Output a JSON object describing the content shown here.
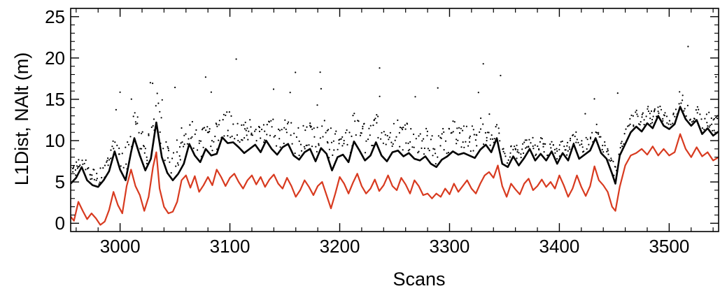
{
  "chart_data": {
    "type": "line",
    "title": "",
    "xlabel": "Scans",
    "ylabel": "L1Dist, NAlt (m)",
    "xlim": [
      2955,
      3545
    ],
    "ylim": [
      -1,
      26
    ],
    "xticks": [
      3000,
      3100,
      3200,
      3300,
      3400,
      3500
    ],
    "yticks": [
      0,
      5,
      10,
      15,
      20,
      25
    ],
    "xtick_labels": [
      "3000",
      "3100",
      "3200",
      "3300",
      "3400",
      "3500"
    ],
    "ytick_labels": [
      "0",
      "5",
      "10",
      "15",
      "20",
      "25"
    ],
    "grid": false,
    "legend": "none",
    "series": [
      {
        "kind": "line",
        "color": "#000000",
        "x": [
          2955,
          2960,
          2965,
          2970,
          2975,
          2980,
          2985,
          2990,
          2995,
          3000,
          3005,
          3010,
          3013,
          3018,
          3023,
          3028,
          3033,
          3038,
          3043,
          3048,
          3053,
          3058,
          3063,
          3068,
          3073,
          3078,
          3083,
          3088,
          3093,
          3098,
          3103,
          3108,
          3113,
          3118,
          3123,
          3128,
          3133,
          3138,
          3143,
          3148,
          3153,
          3158,
          3163,
          3168,
          3173,
          3178,
          3183,
          3188,
          3193,
          3198,
          3203,
          3208,
          3213,
          3218,
          3223,
          3228,
          3233,
          3238,
          3243,
          3248,
          3253,
          3258,
          3263,
          3268,
          3273,
          3278,
          3283,
          3288,
          3293,
          3298,
          3303,
          3308,
          3313,
          3318,
          3323,
          3328,
          3333,
          3338,
          3343,
          3348,
          3353,
          3358,
          3363,
          3368,
          3373,
          3378,
          3383,
          3388,
          3393,
          3398,
          3403,
          3408,
          3413,
          3418,
          3423,
          3428,
          3433,
          3438,
          3443,
          3448,
          3451,
          3455,
          3460,
          3465,
          3470,
          3475,
          3480,
          3485,
          3490,
          3495,
          3500,
          3505,
          3510,
          3515,
          3520,
          3525,
          3530,
          3535,
          3540,
          3545
        ],
        "y": [
          4.8,
          5.5,
          6.8,
          5.2,
          4.6,
          4.4,
          5.2,
          6.3,
          8.7,
          6.5,
          5.2,
          8.6,
          10.3,
          8.2,
          6.4,
          7.8,
          12.2,
          8.0,
          6.1,
          5.2,
          6.0,
          7.2,
          9.6,
          8.2,
          7.4,
          9.0,
          8.2,
          8.4,
          10.4,
          9.7,
          9.8,
          9.2,
          8.5,
          9.0,
          9.5,
          8.6,
          10.0,
          9.0,
          8.3,
          9.2,
          9.6,
          8.2,
          7.7,
          8.6,
          9.0,
          7.5,
          9.1,
          8.4,
          6.4,
          8.0,
          8.3,
          7.4,
          9.9,
          8.8,
          7.6,
          8.2,
          9.8,
          8.2,
          7.5,
          8.6,
          8.8,
          8.1,
          8.5,
          7.8,
          7.6,
          8.1,
          7.2,
          6.8,
          7.7,
          8.1,
          8.7,
          8.3,
          8.5,
          8.2,
          7.9,
          8.9,
          9.5,
          8.6,
          10.3,
          7.2,
          6.8,
          8.1,
          7.0,
          7.9,
          9.0,
          7.6,
          8.4,
          7.6,
          8.7,
          7.2,
          8.5,
          7.6,
          9.6,
          7.8,
          8.3,
          8.8,
          10.3,
          8.5,
          7.8,
          6.0,
          4.8,
          8.2,
          9.6,
          11.0,
          11.7,
          11.1,
          12.1,
          11.5,
          13.0,
          11.8,
          11.4,
          12.0,
          14.1,
          12.6,
          11.8,
          12.5,
          10.8,
          11.5,
          10.6,
          11.1
        ]
      },
      {
        "kind": "line",
        "color": "#d83a1f",
        "x": [
          2955,
          2958,
          2962,
          2966,
          2970,
          2974,
          2978,
          2982,
          2986,
          2990,
          2994,
          2998,
          3002,
          3006,
          3010,
          3014,
          3018,
          3022,
          3026,
          3030,
          3033,
          3036,
          3040,
          3044,
          3048,
          3052,
          3056,
          3060,
          3064,
          3068,
          3072,
          3076,
          3080,
          3084,
          3088,
          3092,
          3096,
          3100,
          3104,
          3108,
          3112,
          3116,
          3120,
          3124,
          3128,
          3132,
          3136,
          3140,
          3144,
          3148,
          3152,
          3156,
          3160,
          3164,
          3168,
          3172,
          3176,
          3180,
          3184,
          3188,
          3192,
          3196,
          3200,
          3204,
          3208,
          3212,
          3216,
          3220,
          3224,
          3228,
          3232,
          3236,
          3240,
          3244,
          3248,
          3252,
          3256,
          3260,
          3264,
          3268,
          3272,
          3276,
          3280,
          3284,
          3288,
          3292,
          3296,
          3300,
          3304,
          3308,
          3312,
          3316,
          3320,
          3324,
          3328,
          3332,
          3336,
          3340,
          3344,
          3348,
          3352,
          3356,
          3360,
          3364,
          3368,
          3372,
          3376,
          3380,
          3384,
          3388,
          3392,
          3396,
          3400,
          3404,
          3408,
          3412,
          3416,
          3420,
          3424,
          3428,
          3432,
          3436,
          3440,
          3444,
          3448,
          3451,
          3455,
          3460,
          3465,
          3470,
          3475,
          3480,
          3485,
          3490,
          3495,
          3500,
          3505,
          3510,
          3515,
          3520,
          3525,
          3530,
          3535,
          3540,
          3545
        ],
        "y": [
          0.8,
          0.3,
          2.6,
          1.5,
          0.5,
          1.2,
          0.6,
          -0.2,
          0.2,
          1.6,
          3.8,
          2.2,
          1.2,
          4.5,
          6.5,
          4.5,
          3.4,
          1.5,
          3.2,
          6.8,
          8.6,
          4.2,
          2.0,
          1.2,
          1.4,
          2.6,
          5.2,
          5.8,
          4.3,
          5.7,
          3.8,
          4.6,
          5.6,
          4.6,
          6.5,
          5.6,
          4.5,
          5.5,
          6.0,
          5.0,
          4.2,
          5.2,
          5.8,
          4.7,
          5.6,
          4.4,
          5.3,
          5.9,
          4.8,
          4.2,
          5.5,
          4.5,
          3.2,
          4.0,
          5.2,
          4.4,
          3.4,
          4.5,
          5.0,
          3.4,
          1.8,
          3.6,
          5.6,
          4.8,
          3.6,
          4.9,
          6.0,
          4.5,
          3.6,
          4.2,
          5.3,
          3.9,
          4.6,
          5.8,
          4.5,
          4.0,
          5.5,
          4.7,
          3.6,
          5.2,
          4.5,
          3.4,
          3.6,
          3.0,
          3.6,
          3.2,
          4.2,
          3.5,
          4.8,
          3.8,
          4.5,
          5.2,
          4.2,
          3.6,
          4.8,
          5.8,
          6.2,
          5.5,
          7.0,
          4.5,
          3.2,
          4.8,
          4.1,
          3.5,
          4.8,
          5.4,
          4.0,
          4.5,
          5.3,
          4.4,
          5.0,
          4.2,
          5.8,
          4.6,
          3.2,
          4.2,
          5.8,
          4.4,
          3.3,
          4.5,
          6.9,
          5.2,
          4.6,
          3.8,
          2.0,
          1.5,
          4.4,
          7.0,
          8.2,
          8.5,
          9.0,
          8.3,
          9.3,
          8.2,
          9.0,
          8.2,
          8.6,
          10.8,
          9.0,
          8.0,
          9.2,
          8.1,
          8.6,
          7.6,
          8.0
        ]
      },
      {
        "kind": "scatter",
        "color": "#000000"
      }
    ]
  }
}
